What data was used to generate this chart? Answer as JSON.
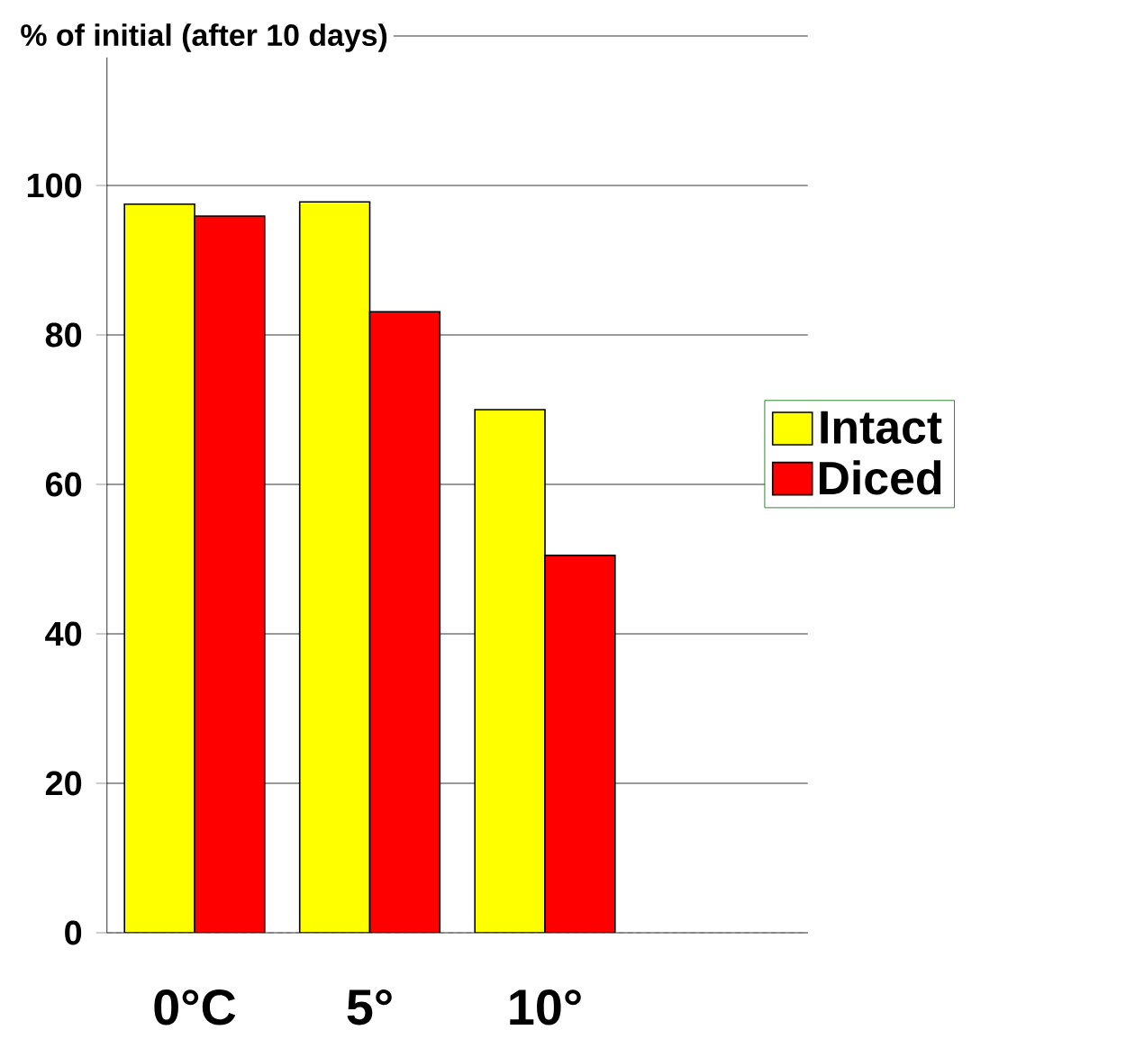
{
  "chart_data": {
    "type": "bar",
    "title": "% of initial (after 10 days)",
    "categories": [
      "0°C",
      "5°",
      "10°",
      null
    ],
    "series": [
      {
        "name": "Intact",
        "color": "#ffff00",
        "values": [
          97.5,
          97.8,
          70.0,
          null
        ]
      },
      {
        "name": "Diced",
        "color": "#ff0000",
        "values": [
          95.9,
          83.1,
          50.5,
          null
        ]
      }
    ],
    "ylim": [
      0,
      120
    ],
    "yticks": [
      0,
      20,
      40,
      60,
      80,
      100,
      {
        "value": 120,
        "label": null
      }
    ],
    "grid": "y",
    "legend": "right"
  }
}
